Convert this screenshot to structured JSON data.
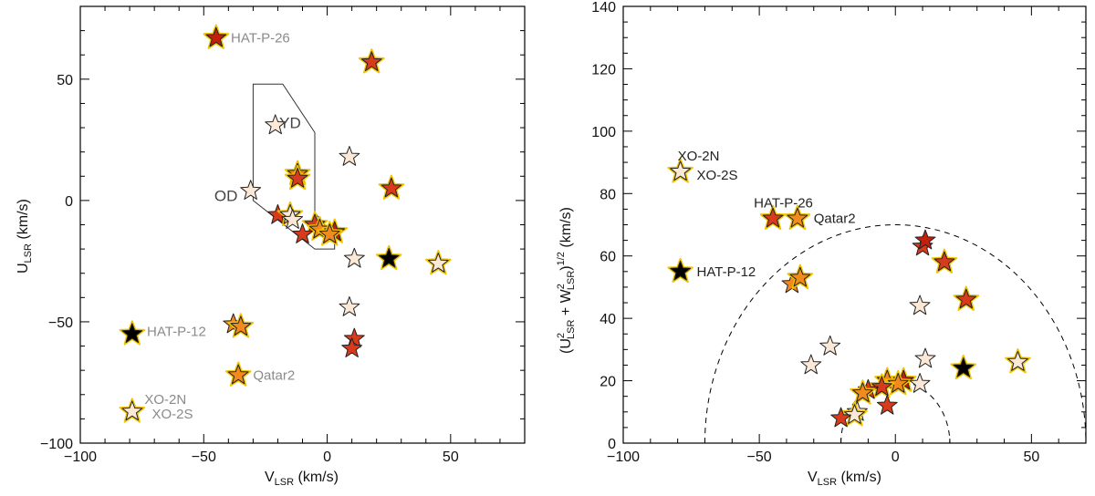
{
  "colors": {
    "outline_halo": "#f2c500",
    "black": "#000000",
    "dark_red": "#c2200f",
    "red": "#d83a1c",
    "orange": "#f28a1c",
    "cream": "#fbe8d6",
    "frame": "#000000",
    "region": "#333333",
    "annotation_grey": "#8a8a8a",
    "annotation_dark": "#222222"
  },
  "chart_data": [
    {
      "type": "scatter",
      "panel": "left",
      "xlabel_main": "V",
      "xlabel_sub": "LSR",
      "xlabel_unit": " (km/s)",
      "ylabel_main": "U",
      "ylabel_sub": "LSR",
      "ylabel_unit": " (km/s)",
      "xlim": [
        -100,
        80
      ],
      "ylim": [
        -100,
        80
      ],
      "xticks": [
        -100,
        -50,
        0,
        50
      ],
      "yticks": [
        -100,
        -50,
        0,
        50
      ],
      "regions": [
        {
          "name": "YD",
          "label": "YD",
          "polygon": [
            [
              -30,
              48
            ],
            [
              -18,
              48
            ],
            [
              -5,
              28
            ],
            [
              -5,
              -5
            ],
            [
              3,
              -15
            ],
            [
              3,
              -20
            ],
            [
              -5,
              -20
            ],
            [
              -30,
              0
            ]
          ]
        }
      ],
      "region_labels": [
        {
          "label": "OD",
          "x": -41,
          "y": 2
        },
        {
          "label": "YD",
          "x": -15,
          "y": 32
        }
      ],
      "points": [
        {
          "x": -45,
          "y": 67,
          "color": "dark_red",
          "halo": true
        },
        {
          "x": 18,
          "y": 57,
          "color": "red",
          "halo": true
        },
        {
          "x": -21,
          "y": 31,
          "color": "cream",
          "halo": false
        },
        {
          "x": 9,
          "y": 18,
          "color": "cream",
          "halo": false
        },
        {
          "x": -12,
          "y": 11,
          "color": "orange",
          "halo": true
        },
        {
          "x": -12,
          "y": 9,
          "color": "red",
          "halo": true
        },
        {
          "x": 26,
          "y": 5,
          "color": "red",
          "halo": true
        },
        {
          "x": -31,
          "y": 4,
          "color": "cream",
          "halo": false
        },
        {
          "x": -20,
          "y": -6,
          "color": "red",
          "halo": false
        },
        {
          "x": -15,
          "y": -6,
          "color": "cream",
          "halo": true
        },
        {
          "x": -14,
          "y": -8,
          "color": "cream",
          "halo": false
        },
        {
          "x": -5,
          "y": -10,
          "color": "red",
          "halo": true
        },
        {
          "x": -3,
          "y": -12,
          "color": "orange",
          "halo": true
        },
        {
          "x": -10,
          "y": -14,
          "color": "red",
          "halo": false
        },
        {
          "x": 3,
          "y": -13,
          "color": "dark_red",
          "halo": true
        },
        {
          "x": 1,
          "y": -14,
          "color": "orange",
          "halo": true
        },
        {
          "x": 11,
          "y": -24,
          "color": "cream",
          "halo": false
        },
        {
          "x": 25,
          "y": -24,
          "color": "black",
          "halo": true
        },
        {
          "x": 45,
          "y": -26,
          "color": "cream",
          "halo": true
        },
        {
          "x": 9,
          "y": -44,
          "color": "cream",
          "halo": false
        },
        {
          "x": -38,
          "y": -51,
          "color": "orange",
          "halo": false
        },
        {
          "x": -35,
          "y": -52,
          "color": "orange",
          "halo": true
        },
        {
          "x": 11,
          "y": -57,
          "color": "red",
          "halo": false
        },
        {
          "x": 10,
          "y": -61,
          "color": "red",
          "halo": false
        },
        {
          "x": -79,
          "y": -55,
          "color": "black",
          "halo": true
        },
        {
          "x": -36,
          "y": -72,
          "color": "orange",
          "halo": true
        },
        {
          "x": -79,
          "y": -87,
          "color": "cream",
          "halo": true
        }
      ],
      "annotations": [
        {
          "text": "HAT-P-26",
          "x": -39,
          "y": 67,
          "tone": "annotation_grey"
        },
        {
          "text": "HAT-P-12",
          "x": -73,
          "y": -54,
          "tone": "annotation_grey"
        },
        {
          "text": "Qatar2",
          "x": -30,
          "y": -72,
          "tone": "annotation_grey"
        },
        {
          "text": "XO-2N",
          "x": -74,
          "y": -82,
          "tone": "annotation_grey"
        },
        {
          "text": "XO-2S",
          "x": -71,
          "y": -88,
          "tone": "annotation_grey"
        }
      ]
    },
    {
      "type": "scatter",
      "panel": "right",
      "xlabel_main": "V",
      "xlabel_sub": "LSR",
      "xlabel_unit": " (km/s)",
      "ylabel_prefix": "(U",
      "ylabel_sup1": "2",
      "ylabel_sub1": "LSR",
      "ylabel_mid": " + W",
      "ylabel_sup2": "2",
      "ylabel_sub2": "LSR",
      "ylabel_suffix": ")",
      "ylabel_exp": "1/2",
      "ylabel_unit": " (km/s)",
      "xlim": [
        -100,
        70
      ],
      "ylim": [
        0,
        140
      ],
      "xticks": [
        -100,
        -50,
        0,
        50
      ],
      "yticks": [
        0,
        20,
        40,
        60,
        80,
        100,
        120,
        140
      ],
      "dashed_circles": [
        70,
        20
      ],
      "points": [
        {
          "x": -79,
          "y": 87,
          "color": "cream",
          "halo": true
        },
        {
          "x": -45,
          "y": 72,
          "color": "red",
          "halo": true
        },
        {
          "x": -36,
          "y": 72,
          "color": "orange",
          "halo": true
        },
        {
          "x": -79,
          "y": 55,
          "color": "black",
          "halo": true
        },
        {
          "x": -38,
          "y": 51,
          "color": "orange",
          "halo": false
        },
        {
          "x": -35,
          "y": 53,
          "color": "orange",
          "halo": true
        },
        {
          "x": 10,
          "y": 63,
          "color": "red",
          "halo": false
        },
        {
          "x": 11,
          "y": 65,
          "color": "dark_red",
          "halo": false
        },
        {
          "x": 18,
          "y": 58,
          "color": "red",
          "halo": true
        },
        {
          "x": 26,
          "y": 46,
          "color": "red",
          "halo": true
        },
        {
          "x": 9,
          "y": 44,
          "color": "cream",
          "halo": false
        },
        {
          "x": -24,
          "y": 31,
          "color": "cream",
          "halo": false
        },
        {
          "x": -31,
          "y": 25,
          "color": "cream",
          "halo": false
        },
        {
          "x": 11,
          "y": 27,
          "color": "cream",
          "halo": false
        },
        {
          "x": 45,
          "y": 26,
          "color": "cream",
          "halo": true
        },
        {
          "x": 25,
          "y": 24,
          "color": "black",
          "halo": true
        },
        {
          "x": -3,
          "y": 20,
          "color": "orange",
          "halo": true
        },
        {
          "x": 3,
          "y": 20,
          "color": "dark_red",
          "halo": true
        },
        {
          "x": 1,
          "y": 19,
          "color": "orange",
          "halo": true
        },
        {
          "x": 9,
          "y": 19,
          "color": "cream",
          "halo": false
        },
        {
          "x": -5,
          "y": 18,
          "color": "red",
          "halo": true
        },
        {
          "x": -10,
          "y": 17,
          "color": "red",
          "halo": false
        },
        {
          "x": -12,
          "y": 16,
          "color": "orange",
          "halo": true
        },
        {
          "x": -3,
          "y": 12,
          "color": "red",
          "halo": false
        },
        {
          "x": -14,
          "y": 10,
          "color": "cream",
          "halo": false
        },
        {
          "x": -15,
          "y": 9,
          "color": "cream",
          "halo": true
        },
        {
          "x": -20,
          "y": 8,
          "color": "red",
          "halo": false
        }
      ],
      "annotations": [
        {
          "text": "XO-2N",
          "x": -80,
          "y": 92,
          "tone": "annotation_dark"
        },
        {
          "text": "XO-2S",
          "x": -73,
          "y": 86,
          "tone": "annotation_dark"
        },
        {
          "text": "HAT-P-26",
          "x": -52,
          "y": 77,
          "tone": "annotation_dark"
        },
        {
          "text": "Qatar2",
          "x": -30,
          "y": 72,
          "tone": "annotation_dark"
        },
        {
          "text": "HAT-P-12",
          "x": -73,
          "y": 55,
          "tone": "annotation_dark"
        }
      ]
    }
  ]
}
